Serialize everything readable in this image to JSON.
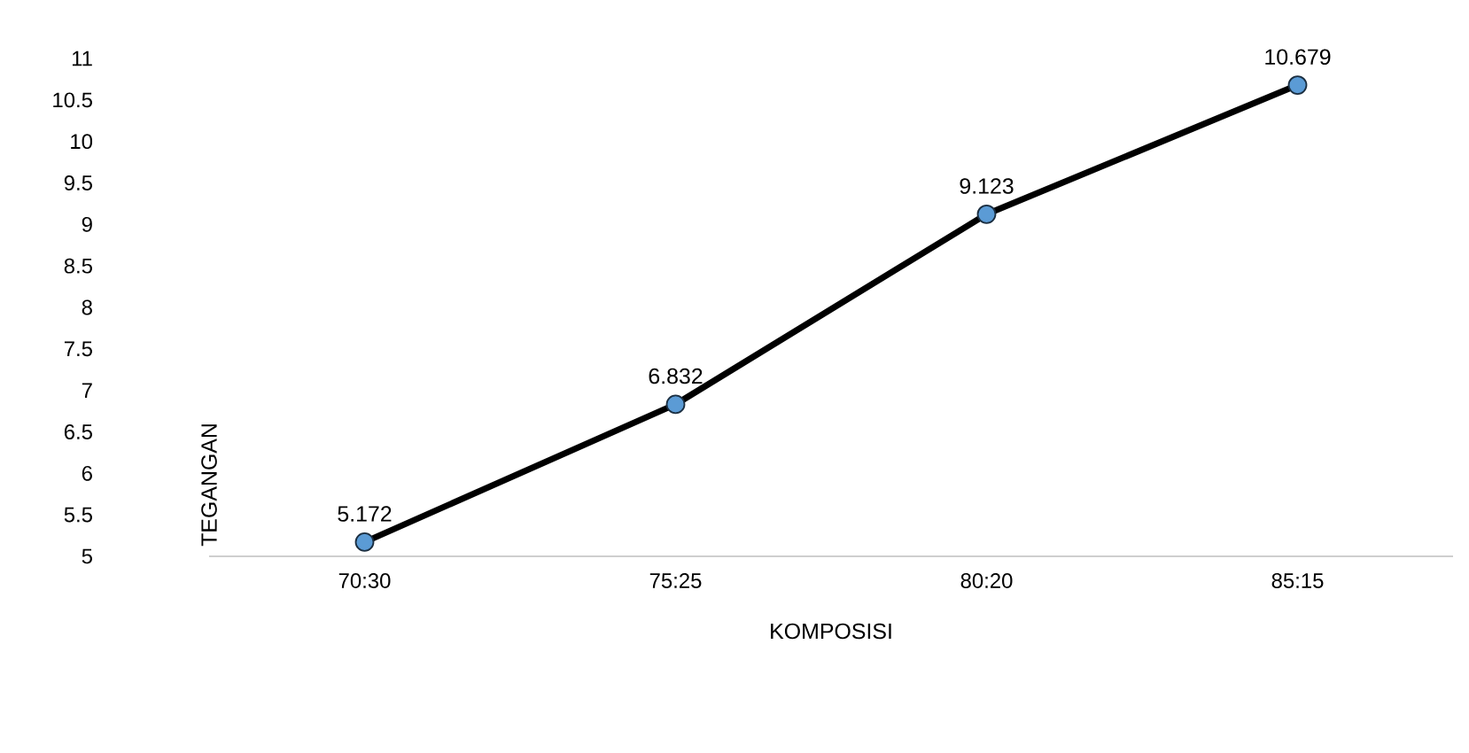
{
  "chart_data": {
    "type": "line",
    "xlabel": "KOMPOSISI",
    "ylabel": "TEGANGAN",
    "categories": [
      "70:30",
      "75:25",
      "80:20",
      "85:15"
    ],
    "values": [
      5.172,
      6.832,
      9.123,
      10.679
    ],
    "color": "#000000",
    "colors": [
      "#5b9bd5",
      "#5b9bd5",
      "#5b9bd5",
      "#5b9bd5"
    ],
    "marker": "circle",
    "line_style": "solid",
    "data_labels": true,
    "ylim": [
      5,
      11
    ],
    "yticks": [
      5,
      5.5,
      6,
      6.5,
      7,
      7.5,
      8,
      8.5,
      9,
      9.5,
      10,
      10.5,
      11
    ]
  }
}
